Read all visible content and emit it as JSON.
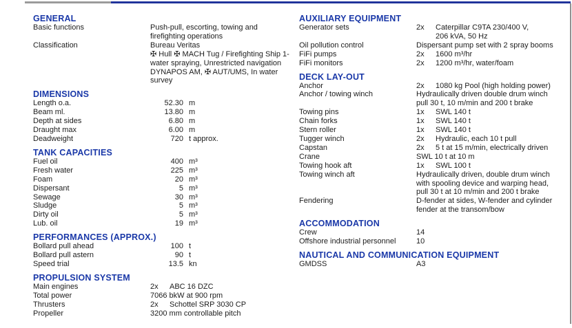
{
  "colors": {
    "accent": "#1a38a8",
    "text": "#1c1c1c",
    "top_bar_blue": "#20339b",
    "top_bar_gray": "#9b9b9b",
    "page_edge_gray": "#8f8f8f"
  },
  "columns": {
    "left": {
      "sections": [
        {
          "id": "general",
          "title": "GENERAL",
          "rows": [
            {
              "kind": "lines",
              "label": "Basic functions",
              "lines": [
                "Push-pull, escorting, towing and",
                "firefighting operations"
              ]
            },
            {
              "kind": "lines",
              "label": "Classification",
              "lines": [
                "Bureau Veritas",
                "✠ Hull ✠ MACH Tug / Firefighting Ship 1-",
                "water spraying, Unrestricted navigation",
                "DYNAPOS AM, ✠ AUT/UMS, In water",
                "survey"
              ]
            }
          ]
        },
        {
          "id": "dimensions",
          "title": "DIMENSIONS",
          "rows": [
            {
              "kind": "measure",
              "label": "Length o.a.",
              "num": "52.30",
              "unit": "m"
            },
            {
              "kind": "measure",
              "label": "Beam ml.",
              "num": "13.80",
              "unit": "m"
            },
            {
              "kind": "measure",
              "label": "Depth at sides",
              "num": "6.80",
              "unit": "m"
            },
            {
              "kind": "measure",
              "label": "Draught max",
              "num": "6.00",
              "unit": "m"
            },
            {
              "kind": "measure",
              "label": "Deadweight",
              "num": "720",
              "unit": "t approx."
            }
          ]
        },
        {
          "id": "tank-capacities",
          "title": "TANK CAPACITIES",
          "rows": [
            {
              "kind": "measure",
              "label": "Fuel oil",
              "num": "400",
              "unit": "m³"
            },
            {
              "kind": "measure",
              "label": "Fresh water",
              "num": "225",
              "unit": "m³"
            },
            {
              "kind": "measure",
              "label": "Foam",
              "num": "20",
              "unit": "m³"
            },
            {
              "kind": "measure",
              "label": "Dispersant",
              "num": "5",
              "unit": "m³"
            },
            {
              "kind": "measure",
              "label": "Sewage",
              "num": "30",
              "unit": "m³"
            },
            {
              "kind": "measure",
              "label": "Sludge",
              "num": "5",
              "unit": "m³"
            },
            {
              "kind": "measure",
              "label": "Dirty oil",
              "num": "5",
              "unit": "m³"
            },
            {
              "kind": "measure",
              "label": "Lub. oil",
              "num": "19",
              "unit": "m³"
            }
          ]
        },
        {
          "id": "performances",
          "title": "PERFORMANCES (APPROX.)",
          "rows": [
            {
              "kind": "measure",
              "label": "Bollard pull ahead",
              "num": "100",
              "unit": "t"
            },
            {
              "kind": "measure",
              "label": "Bollard pull astern",
              "num": "90",
              "unit": "t"
            },
            {
              "kind": "measure",
              "label": "Speed trial",
              "num": "13.5",
              "unit": "kn"
            }
          ]
        },
        {
          "id": "propulsion-system",
          "title": "PROPULSION SYSTEM",
          "rows": [
            {
              "kind": "qty",
              "label": "Main engines",
              "qty": "2x",
              "lines": [
                "ABC 16 DZC"
              ]
            },
            {
              "kind": "lines",
              "label": "Total power",
              "lines": [
                "7066 bkW at 900 rpm"
              ]
            },
            {
              "kind": "qty",
              "label": "Thrusters",
              "qty": "2x",
              "lines": [
                "Schottel SRP 3030 CP"
              ]
            },
            {
              "kind": "lines",
              "label": "Propeller",
              "lines": [
                "3200 mm controllable pitch"
              ]
            }
          ]
        }
      ]
    },
    "right": {
      "sections": [
        {
          "id": "auxiliary-equipment",
          "title": "AUXILIARY EQUIPMENT",
          "rows": [
            {
              "kind": "qty",
              "label": "Generator sets",
              "qty": "2x",
              "lines": [
                "Caterpillar C9TA 230/400 V,",
                "206 kVA, 50 Hz"
              ]
            },
            {
              "kind": "lines",
              "label": "Oil pollution control",
              "lines": [
                "Dispersant pump set with 2 spray booms"
              ]
            },
            {
              "kind": "qty",
              "label": "FiFi pumps",
              "qty": "2x",
              "lines": [
                "1600 m³/hr"
              ]
            },
            {
              "kind": "qty",
              "label": "FiFi monitors",
              "qty": "2x",
              "lines": [
                "1200 m³/hr, water/foam"
              ]
            }
          ]
        },
        {
          "id": "deck-lay-out",
          "title": "DECK LAY-OUT",
          "rows": [
            {
              "kind": "qty",
              "label": "Anchor",
              "qty": "2x",
              "lines": [
                "1080 kg Pool (high holding power)"
              ]
            },
            {
              "kind": "lines",
              "label": "Anchor / towing winch",
              "lines": [
                "Hydraulically driven double drum winch",
                "pull 30 t, 10 m/min and 200 t brake"
              ]
            },
            {
              "kind": "qty",
              "label": "Towing pins",
              "qty": "1x",
              "lines": [
                "SWL 140 t"
              ]
            },
            {
              "kind": "qty",
              "label": "Chain forks",
              "qty": "1x",
              "lines": [
                "SWL 140 t"
              ]
            },
            {
              "kind": "qty",
              "label": "Stern roller",
              "qty": "1x",
              "lines": [
                "SWL 140 t"
              ]
            },
            {
              "kind": "qty",
              "label": "Tugger winch",
              "qty": "2x",
              "lines": [
                "Hydraulic, each 10 t pull"
              ]
            },
            {
              "kind": "qty",
              "label": "Capstan",
              "qty": "2x",
              "lines": [
                "5 t at 15 m/min, electrically driven"
              ]
            },
            {
              "kind": "lines",
              "label": "Crane",
              "lines": [
                "SWL 10 t at 10 m"
              ]
            },
            {
              "kind": "qty",
              "label": "Towing hook aft",
              "qty": "1x",
              "lines": [
                "SWL 100 t"
              ]
            },
            {
              "kind": "lines",
              "label": "Towing winch aft",
              "lines": [
                "Hydraulically driven, double drum winch",
                "with spooling device and warping head,",
                "pull 30 t at 10 m/min and 200 t brake"
              ]
            },
            {
              "kind": "lines",
              "label": "Fendering",
              "lines": [
                "D-fender at sides, W-fender and cylinder",
                "fender at the transom/bow"
              ]
            }
          ]
        },
        {
          "id": "accommodation",
          "title": "ACCOMMODATION",
          "rows": [
            {
              "kind": "lines",
              "label": "Crew",
              "lines": [
                "14"
              ]
            },
            {
              "kind": "lines",
              "label": "Offshore industrial personnel",
              "lines": [
                "10"
              ]
            }
          ]
        },
        {
          "id": "nautical-communication",
          "title": "NAUTICAL AND COMMUNICATION EQUIPMENT",
          "rows": [
            {
              "kind": "lines",
              "label": "GMDSS",
              "lines": [
                "A3"
              ]
            }
          ]
        }
      ]
    }
  }
}
